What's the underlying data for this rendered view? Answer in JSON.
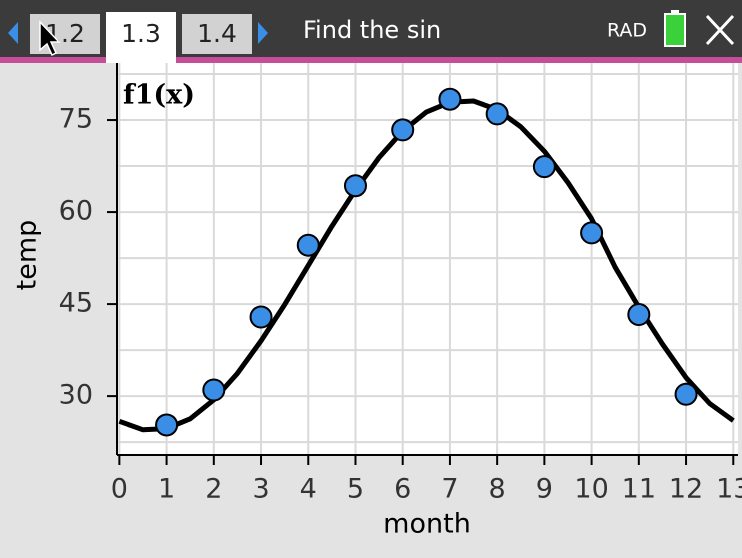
{
  "toolbar": {
    "tabs": [
      "1.2",
      "1.3",
      "1.4"
    ],
    "active_tab": 1,
    "document_title": "Find the sin",
    "angle_mode": "RAD"
  },
  "chart_data": {
    "type": "scatter",
    "x_label": "month",
    "y_label": "temp",
    "xlim": [
      -0.05,
      13.1
    ],
    "ylim": [
      20.4,
      84.3
    ],
    "xticks": [
      0,
      1,
      2,
      3,
      4,
      5,
      6,
      7,
      8,
      9,
      10,
      11,
      12,
      13
    ],
    "yticks": [
      30,
      45,
      60,
      75
    ],
    "y_minor_gridlines": [
      22.5,
      37.5,
      52.5,
      67.5,
      82.5
    ],
    "grid": true,
    "points": {
      "color": "#3a8ee6",
      "x": [
        1,
        2,
        3,
        4,
        5,
        6,
        7,
        8,
        9,
        10,
        11,
        12
      ],
      "y": [
        25.3,
        31,
        42.9,
        54.6,
        64.3,
        73.4,
        78.4,
        76,
        67.4,
        56.6,
        43.3,
        30.3
      ]
    },
    "curve": {
      "label": "f1(x)",
      "color": "#000000",
      "x": [
        0,
        0.5,
        1,
        1.5,
        2,
        2.5,
        3,
        3.5,
        4,
        4.5,
        5,
        5.5,
        6,
        6.5,
        7,
        7.5,
        8,
        8.5,
        9,
        9.5,
        10,
        10.5,
        11,
        11.5,
        12,
        12.5,
        13
      ],
      "y": [
        25.9,
        24.5,
        24.7,
        26.3,
        29.4,
        33.7,
        39,
        44.9,
        51.3,
        57.7,
        63.6,
        68.9,
        73.2,
        76.3,
        77.9,
        78.1,
        76.7,
        73.9,
        69.9,
        64.8,
        58.9,
        51,
        44.5,
        38.5,
        33,
        28.8,
        26
      ]
    }
  }
}
